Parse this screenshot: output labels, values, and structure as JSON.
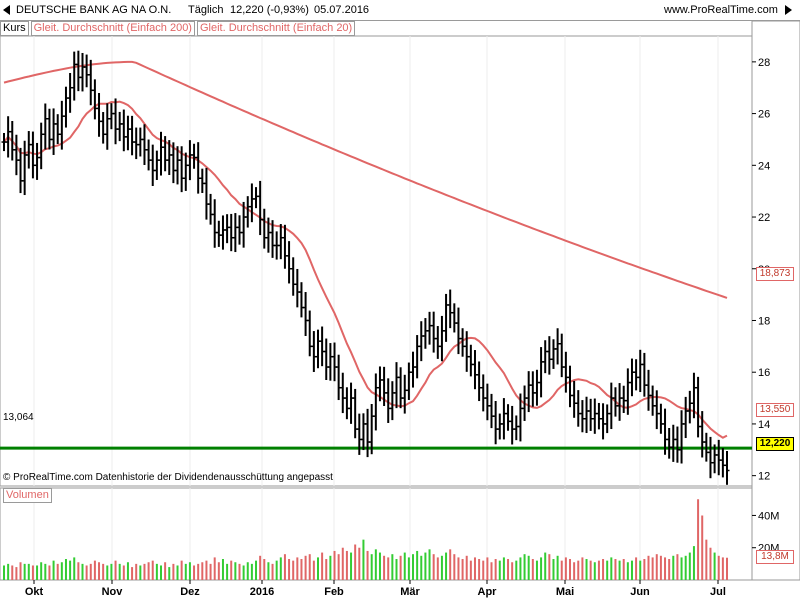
{
  "header": {
    "title": "DEUTSCHE BANK AG NA O.N.",
    "interval": "Täglich",
    "last_change": "12,220 (-0,93%)",
    "date": "05.07.2016",
    "source": "www.ProRealTime.com"
  },
  "legend": {
    "kurs": "Kurs",
    "ma200": "Gleit. Durchschnitt (Einfach 200)",
    "ma20": "Gleit. Durchschnitt (Einfach 20)"
  },
  "footer": {
    "copyright": "© ProRealTime.com  Datenhistorie der Dividendenausschüttung angepasst",
    "volume_title": "Volumen"
  },
  "tags": {
    "price": "12,220",
    "ma200": "18,873",
    "ma20": "13,550",
    "volume": "13,8M",
    "hline": "13,064"
  },
  "colors": {
    "price_bars": "#000000",
    "moving_averages": "#e06666",
    "support_line": "#008000",
    "volume_up": "#33cc33",
    "volume_down": "#e06666",
    "highlight_tag": "#ffff00"
  },
  "chart_data": [
    {
      "type": "ohlc",
      "name": "Kurs",
      "ylim": [
        11.6,
        29.0
      ],
      "yticks": [
        12,
        14,
        16,
        18,
        20,
        22,
        24,
        26,
        28
      ],
      "ytick_labels": [
        "12",
        "14",
        "16",
        "18",
        "20",
        "22",
        "24",
        "26",
        "28"
      ],
      "xticks": [
        "Okt",
        "Nov",
        "Dez",
        "2016",
        "Feb",
        "Mär",
        "Apr",
        "Mai",
        "Jun",
        "Jul"
      ],
      "close": [
        24.9,
        25.3,
        24.6,
        24.2,
        23.4,
        24.4,
        24.8,
        24.0,
        24.3,
        25.2,
        25.8,
        25.0,
        25.6,
        25.2,
        25.9,
        26.6,
        27.0,
        27.9,
        27.4,
        27.8,
        27.5,
        26.9,
        26.2,
        25.7,
        25.2,
        25.8,
        26.0,
        25.4,
        25.6,
        25.1,
        25.4,
        24.9,
        24.8,
        25.0,
        24.6,
        24.2,
        23.8,
        24.2,
        24.7,
        24.2,
        24.4,
        23.8,
        24.2,
        23.5,
        24.0,
        24.4,
        24.3,
        23.5,
        23.3,
        22.5,
        22.1,
        21.4,
        21.3,
        21.5,
        21.6,
        21.2,
        21.6,
        21.4,
        22.0,
        22.4,
        22.7,
        22.8,
        21.9,
        21.2,
        21.4,
        20.9,
        20.9,
        21.2,
        20.5,
        20.0,
        19.4,
        19.1,
        18.5,
        18.0,
        17.0,
        16.6,
        17.2,
        16.8,
        16.2,
        16.6,
        16.2,
        15.4,
        15.0,
        14.6,
        15.0,
        13.8,
        13.4,
        14.0,
        13.3,
        14.3,
        15.4,
        15.7,
        15.2,
        14.6,
        15.2,
        15.8,
        15.0,
        15.3,
        16.0,
        16.2,
        17.0,
        17.4,
        17.6,
        17.8,
        17.3,
        17.0,
        17.6,
        18.6,
        18.3,
        17.9,
        17.3,
        17.0,
        16.6,
        16.3,
        15.9,
        15.4,
        15.0,
        14.7,
        14.3,
        13.8,
        14.0,
        14.4,
        14.1,
        13.8,
        13.9,
        14.6,
        15.0,
        15.5,
        15.2,
        15.6,
        16.4,
        16.8,
        16.5,
        16.9,
        17.1,
        16.2,
        15.8,
        15.1,
        14.8,
        14.4,
        14.2,
        14.5,
        14.2,
        14.4,
        14.2,
        14.0,
        14.4,
        15.0,
        14.7,
        15.0,
        14.9,
        15.6,
        16.0,
        15.8,
        16.3,
        15.5,
        15.1,
        14.7,
        14.4,
        14.0,
        13.4,
        13.1,
        13.4,
        13.0,
        14.0,
        14.5,
        14.8,
        15.4,
        13.9,
        13.3,
        12.9,
        12.5,
        12.8,
        12.6,
        12.4,
        12.2
      ],
      "moving_average_200": {
        "name": "Gleit. Durchschnitt (Einfach 200)",
        "start": 27.2,
        "peak": 28.0,
        "end": 18.873
      },
      "moving_average_20": {
        "name": "Gleit. Durchschnitt (Einfach 20)",
        "start": 25.8,
        "end": 13.55
      },
      "support_line": 13.064,
      "last_price": 12.22
    },
    {
      "type": "bar",
      "name": "Volumen",
      "yticks": [
        "20M",
        "40M"
      ],
      "ylim_millions": [
        0,
        57
      ],
      "volumes_millions": [
        9,
        10,
        9,
        8,
        11,
        10,
        10,
        9,
        9,
        11,
        10,
        9,
        12,
        10,
        11,
        13,
        12,
        14,
        11,
        10,
        9,
        10,
        12,
        11,
        10,
        9,
        10,
        12,
        10,
        9,
        11,
        8,
        10,
        9,
        10,
        11,
        12,
        10,
        9,
        11,
        8,
        10,
        9,
        12,
        10,
        11,
        9,
        10,
        11,
        12,
        10,
        14,
        11,
        13,
        10,
        12,
        11,
        10,
        9,
        11,
        10,
        12,
        15,
        13,
        11,
        10,
        12,
        14,
        16,
        13,
        12,
        14,
        13,
        15,
        16,
        12,
        14,
        17,
        13,
        15,
        18,
        16,
        20,
        18,
        17,
        22,
        20,
        25,
        18,
        16,
        19,
        17,
        15,
        14,
        16,
        13,
        15,
        17,
        14,
        16,
        18,
        15,
        17,
        19,
        16,
        14,
        15,
        17,
        19,
        16,
        14,
        13,
        15,
        12,
        14,
        13,
        12,
        14,
        11,
        13,
        12,
        14,
        13,
        11,
        12,
        14,
        16,
        15,
        13,
        12,
        14,
        17,
        16,
        13,
        15,
        12,
        14,
        13,
        11,
        12,
        14,
        13,
        12,
        11,
        12,
        13,
        12,
        14,
        13,
        12,
        13,
        11,
        12,
        14,
        12,
        13,
        15,
        14,
        16,
        15,
        14,
        13,
        15,
        16,
        14,
        15,
        17,
        21,
        50,
        40,
        25,
        20,
        17,
        15,
        14,
        13.8
      ]
    }
  ]
}
